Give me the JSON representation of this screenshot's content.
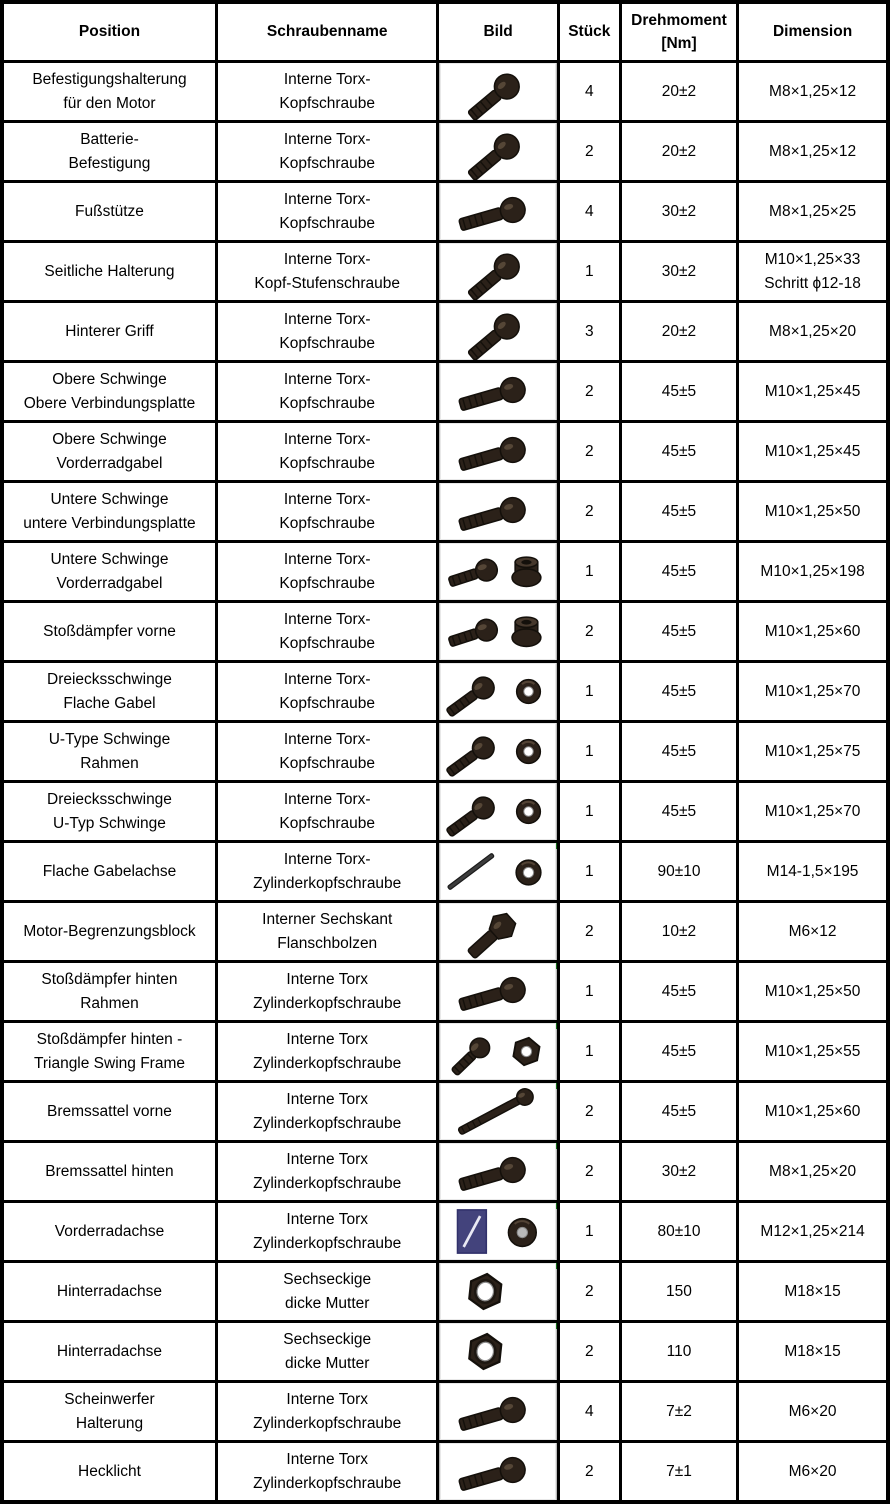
{
  "table": {
    "headers": {
      "position": "Position",
      "name": "Schraubenname",
      "bild": "Bild",
      "stueck": "Stück",
      "drehmoment": "Drehmoment\n[Nm]",
      "dimension": "Dimension"
    },
    "rows": [
      {
        "position": "Befestigungshalterung\nfür den Motor",
        "name": "Interne Torx-\nKopfschraube",
        "icon": "torx-bolt-angled",
        "stueck": "4",
        "drehmoment": "20±2",
        "dimension": "M8×1,25×12",
        "marker": false
      },
      {
        "position": "Batterie-\nBefestigung",
        "name": "Interne Torx-\nKopfschraube",
        "icon": "torx-bolt-angled",
        "stueck": "2",
        "drehmoment": "20±2",
        "dimension": "M8×1,25×12",
        "marker": false
      },
      {
        "position": "Fußstütze",
        "name": "Interne Torx-\nKopfschraube",
        "icon": "torx-bolt-horizontal",
        "stueck": "4",
        "drehmoment": "30±2",
        "dimension": "M8×1,25×25",
        "marker": false
      },
      {
        "position": "Seitliche Halterung",
        "name": "Interne Torx-\nKopf-Stufenschraube",
        "icon": "torx-bolt-angled",
        "stueck": "1",
        "drehmoment": "30±2",
        "dimension": "M10×1,25×33\nSchritt ϕ12-18",
        "marker": false
      },
      {
        "position": "Hinterer Griff",
        "name": "Interne Torx-\nKopfschraube",
        "icon": "torx-bolt-angled",
        "stueck": "3",
        "drehmoment": "20±2",
        "dimension": "M8×1,25×20",
        "marker": false
      },
      {
        "position": "Obere Schwinge\nObere Verbindungsplatte",
        "name": "Interne Torx-\nKopfschraube",
        "icon": "torx-bolt-horizontal",
        "stueck": "2",
        "drehmoment": "45±5",
        "dimension": "M10×1,25×45",
        "marker": false
      },
      {
        "position": "Obere Schwinge\nVorderradgabel",
        "name": "Interne Torx-\nKopfschraube",
        "icon": "torx-bolt-horizontal",
        "stueck": "2",
        "drehmoment": "45±5",
        "dimension": "M10×1,25×45",
        "marker": false
      },
      {
        "position": "Untere Schwinge\nuntere Verbindungsplatte",
        "name": "Interne Torx-\nKopfschraube",
        "icon": "torx-bolt-horizontal",
        "stueck": "2",
        "drehmoment": "45±5",
        "dimension": "M10×1,25×50",
        "marker": false
      },
      {
        "position": "Untere Schwinge\nVorderradgabel",
        "name": "Interne Torx-\nKopfschraube",
        "icon": "torx-bolt-with-flange-nut",
        "stueck": "1",
        "drehmoment": "45±5",
        "dimension": "M10×1,25×198",
        "marker": false
      },
      {
        "position": "Stoßdämpfer vorne",
        "name": "Interne Torx-\nKopfschraube",
        "icon": "torx-bolt-with-flange-nut",
        "stueck": "2",
        "drehmoment": "45±5",
        "dimension": "M10×1,25×60",
        "marker": false
      },
      {
        "position": "Dreiecksschwinge\nFlache Gabel",
        "name": "Interne Torx-\nKopfschraube",
        "icon": "torx-bolt-with-washer",
        "stueck": "1",
        "drehmoment": "45±5",
        "dimension": "M10×1,25×70",
        "marker": false
      },
      {
        "position": "U-Type Schwinge\nRahmen",
        "name": "Interne Torx-\nKopfschraube",
        "icon": "torx-bolt-with-washer",
        "stueck": "1",
        "drehmoment": "45±5",
        "dimension": "M10×1,25×75",
        "marker": false
      },
      {
        "position": "Dreiecksschwinge\nU-Typ Schwinge",
        "name": "Interne Torx-\nKopfschraube",
        "icon": "torx-bolt-with-washer",
        "stueck": "1",
        "drehmoment": "45±5",
        "dimension": "M10×1,25×70",
        "marker": false
      },
      {
        "position": "Flache Gabelachse",
        "name": "Interne Torx-\nZylinderkopfschraube",
        "icon": "thin-rod-with-washer",
        "stueck": "1",
        "drehmoment": "90±10",
        "dimension": "M14-1,5×195",
        "marker": true
      },
      {
        "position": "Motor-Begrenzungsblock",
        "name": "Interner Sechskant\nFlanschbolzen",
        "icon": "hex-flange-bolt",
        "stueck": "2",
        "drehmoment": "10±2",
        "dimension": "M6×12",
        "marker": false
      },
      {
        "position": "Stoßdämpfer hinten\nRahmen",
        "name": "Interne Torx\nZylinderkopfschraube",
        "icon": "torx-bolt-horizontal",
        "stueck": "1",
        "drehmoment": "45±5",
        "dimension": "M10×1,25×50",
        "marker": true
      },
      {
        "position": "Stoßdämpfer hinten -\nTriangle Swing Frame",
        "name": "Interne Torx\nZylinderkopfschraube",
        "icon": "bolt-with-hex-nut",
        "stueck": "1",
        "drehmoment": "45±5",
        "dimension": "M10×1,25×55",
        "marker": true
      },
      {
        "position": "Bremssattel vorne",
        "name": "Interne Torx\nZylinderkopfschraube",
        "icon": "long-thin-screw",
        "stueck": "2",
        "drehmoment": "45±5",
        "dimension": "M10×1,25×60",
        "marker": true
      },
      {
        "position": "Bremssattel hinten",
        "name": "Interne Torx\nZylinderkopfschraube",
        "icon": "torx-bolt-horizontal",
        "stueck": "2",
        "drehmoment": "30±2",
        "dimension": "M8×1,25×20",
        "marker": true
      },
      {
        "position": "Vorderradachse",
        "name": "Interne Torx\nZylinderkopfschraube",
        "icon": "axle-on-blue-with-nut",
        "stueck": "1",
        "drehmoment": "80±10",
        "dimension": "M12×1,25×214",
        "marker": true
      },
      {
        "position": "Hinterradachse",
        "name": "Sechseckige\ndicke Mutter",
        "icon": "hex-nut",
        "stueck": "2",
        "drehmoment": "150",
        "dimension": "M18×15",
        "marker": true
      },
      {
        "position": "Hinterradachse",
        "name": "Sechseckige\ndicke Mutter",
        "icon": "hex-nut",
        "stueck": "2",
        "drehmoment": "110",
        "dimension": "M18×15",
        "marker": true
      },
      {
        "position": "Scheinwerfer\nHalterung",
        "name": "Interne Torx\nZylinderkopfschraube",
        "icon": "torx-bolt-horizontal",
        "stueck": "4",
        "drehmoment": "7±2",
        "dimension": "M6×20",
        "marker": false
      },
      {
        "position": "Hecklicht",
        "name": "Interne Torx\nZylinderkopfschraube",
        "icon": "torx-bolt-horizontal",
        "stueck": "2",
        "drehmoment": "7±1",
        "dimension": "M6×20",
        "marker": false
      }
    ]
  },
  "colors": {
    "border": "#000000",
    "image_frame": "#b9b9b9",
    "bolt_body": "#2b2119",
    "axle_card_blue": "#43437c",
    "comment_marker_green": "#0e6b14"
  }
}
